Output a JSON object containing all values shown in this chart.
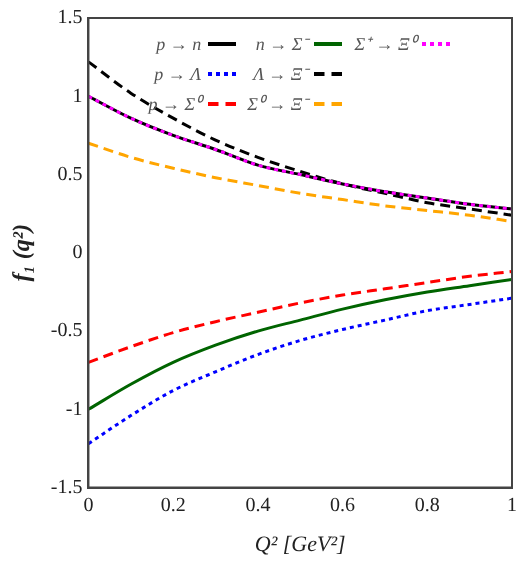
{
  "chart_data": {
    "type": "line",
    "xlabel": "Q² [GeV²]",
    "ylabel": "f₁ (q²)",
    "xlim": [
      0,
      1
    ],
    "xticks": [
      0,
      0.2,
      0.4,
      0.6,
      0.8,
      1
    ],
    "ylim": [
      -1.5,
      1.5
    ],
    "yticks": [
      -1.5,
      -1,
      -0.5,
      0,
      0.5,
      1,
      1.5
    ],
    "grid": false,
    "legend": "top",
    "marker": "none",
    "x": [
      0,
      0.1,
      0.2,
      0.3,
      0.4,
      0.5,
      0.6,
      0.7,
      0.8,
      0.9,
      1
    ],
    "series": [
      {
        "name": "p → n",
        "color": "#000000",
        "line_style": "solid",
        "values": [
          1,
          0.86,
          0.75,
          0.66,
          0.56,
          0.5,
          0.44,
          0.39,
          0.35,
          0.31,
          0.28
        ]
      },
      {
        "name": "p → Λ",
        "color": "#0000ff",
        "line_style": "dotted",
        "values": [
          -1.22,
          -1.04,
          -0.88,
          -0.76,
          -0.65,
          -0.56,
          -0.49,
          -0.43,
          -0.37,
          -0.33,
          -0.29
        ]
      },
      {
        "name": "p → Σ⁰",
        "color": "#ff0000",
        "line_style": "dashed",
        "values": [
          -0.7,
          -0.6,
          -0.51,
          -0.44,
          -0.38,
          -0.32,
          -0.27,
          -0.23,
          -0.19,
          -0.15,
          -0.12
        ]
      },
      {
        "name": "n → Σ⁻",
        "color": "#006400",
        "line_style": "solid",
        "values": [
          -1,
          -0.84,
          -0.7,
          -0.59,
          -0.5,
          -0.43,
          -0.36,
          -0.3,
          -0.25,
          -0.21,
          -0.17
        ]
      },
      {
        "name": "Λ → Ξ⁻",
        "color": "#000000",
        "line_style": "dashed",
        "values": [
          1.22,
          1.02,
          0.86,
          0.72,
          0.61,
          0.52,
          0.44,
          0.38,
          0.32,
          0.28,
          0.24
        ]
      },
      {
        "name": "Σ⁰ → Ξ⁻",
        "color": "#ffa500",
        "line_style": "dashed",
        "values": [
          0.7,
          0.61,
          0.54,
          0.48,
          0.43,
          0.38,
          0.34,
          0.3,
          0.27,
          0.24,
          0.2
        ]
      },
      {
        "name": "Σ⁺ → Ξ⁰",
        "color": "#ff00ff",
        "line_style": "dotted",
        "values": [
          1,
          0.86,
          0.75,
          0.66,
          0.56,
          0.5,
          0.44,
          0.39,
          0.35,
          0.31,
          0.28
        ]
      }
    ]
  }
}
